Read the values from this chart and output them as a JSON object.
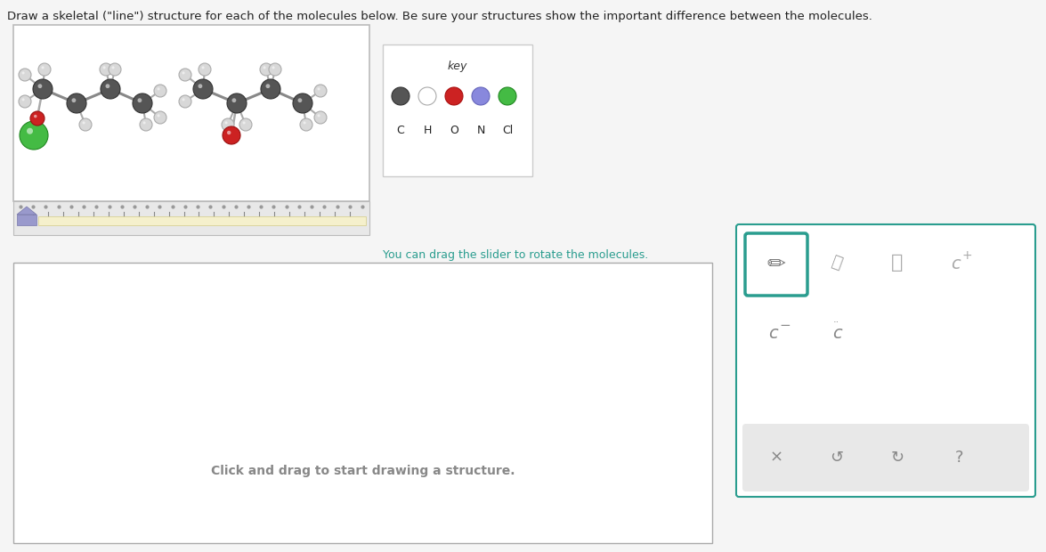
{
  "title_text": "Draw a skeletal (\"line\") structure for each of the molecules below. Be sure your structures show the important difference between the molecules.",
  "title_fontsize": 9.5,
  "title_color": "#222222",
  "bg_color": "#f5f5f5",
  "key_label": "key",
  "key_elements": [
    "C",
    "H",
    "O",
    "N",
    "Cl"
  ],
  "key_colors": [
    "#555555",
    "#ffffff",
    "#cc2222",
    "#8888dd",
    "#44bb44"
  ],
  "key_border_colors": [
    "#333333",
    "#aaaaaa",
    "#aa1111",
    "#6666bb",
    "#228822"
  ],
  "drag_text": "You can drag the slider to rotate the molecules.",
  "drag_text_color": "#2a9d8f",
  "click_text": "Click and drag to start drawing a structure.",
  "click_text_color": "#888888",
  "teal_color": "#2a9d8f",
  "gray_color": "#888888",
  "mol_bg": "#ffffff",
  "mol_border": "#bbbbbb",
  "h_color": "#d8d8d8",
  "h_edge": "#aaaaaa",
  "c_color": "#555555",
  "c_edge": "#333333",
  "o_color": "#cc2222",
  "o_edge": "#991111",
  "cl_color": "#44bb44",
  "cl_edge": "#228822"
}
